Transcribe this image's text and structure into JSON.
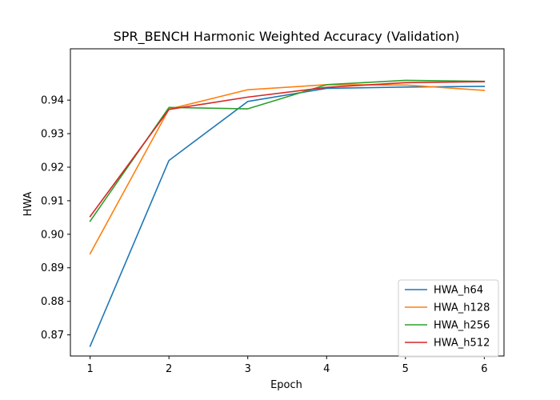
{
  "chart_data": {
    "type": "line",
    "title": "SPR_BENCH Harmonic Weighted Accuracy (Validation)",
    "xlabel": "Epoch",
    "ylabel": "HWA",
    "x": [
      1,
      2,
      3,
      4,
      5,
      6
    ],
    "xticks": [
      "1",
      "2",
      "3",
      "4",
      "5",
      "6"
    ],
    "yticks": [
      "0.87",
      "0.88",
      "0.89",
      "0.90",
      "0.91",
      "0.92",
      "0.93",
      "0.94"
    ],
    "xlim": [
      0.75,
      6.25
    ],
    "ylim": [
      0.8637,
      0.9553
    ],
    "grid": false,
    "legend_position": "lower right",
    "series": [
      {
        "name": "HWA_h64",
        "color": "#1f77b4",
        "values": [
          0.8666,
          0.922,
          0.9396,
          0.9435,
          0.9439,
          0.9441
        ]
      },
      {
        "name": "HWA_h128",
        "color": "#ff7f0e",
        "values": [
          0.8942,
          0.9373,
          0.9431,
          0.9446,
          0.9445,
          0.9429
        ]
      },
      {
        "name": "HWA_h256",
        "color": "#2ca02c",
        "values": [
          0.9039,
          0.9378,
          0.9374,
          0.9446,
          0.9459,
          0.9456
        ]
      },
      {
        "name": "HWA_h512",
        "color": "#d62728",
        "values": [
          0.9053,
          0.9372,
          0.9409,
          0.9438,
          0.9452,
          0.9455
        ]
      }
    ]
  }
}
